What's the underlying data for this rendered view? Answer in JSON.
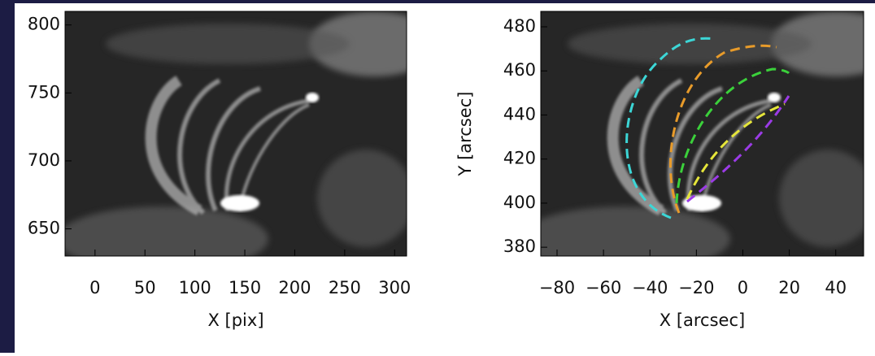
{
  "chart_data": [
    {
      "type": "image",
      "x_label": "X [pix]",
      "xlim": [
        -30,
        312
      ],
      "ylim": [
        630,
        810
      ],
      "xticks": [
        0,
        50,
        100,
        150,
        200,
        250,
        300
      ],
      "yticks": [
        650,
        700,
        750,
        800
      ]
    },
    {
      "type": "image",
      "x_label": "X [arcsec]",
      "y_label": "Y [arcsec]",
      "xlim": [
        -87,
        52
      ],
      "ylim": [
        376,
        487
      ],
      "xticks": [
        {
          "value": -80,
          "label": "−80"
        },
        {
          "value": -60,
          "label": "−60"
        },
        {
          "value": -40,
          "label": "−40"
        },
        {
          "value": -20,
          "label": "−20"
        },
        0,
        20,
        40
      ],
      "yticks": [
        380,
        400,
        420,
        440,
        460,
        480
      ]
    }
  ]
}
